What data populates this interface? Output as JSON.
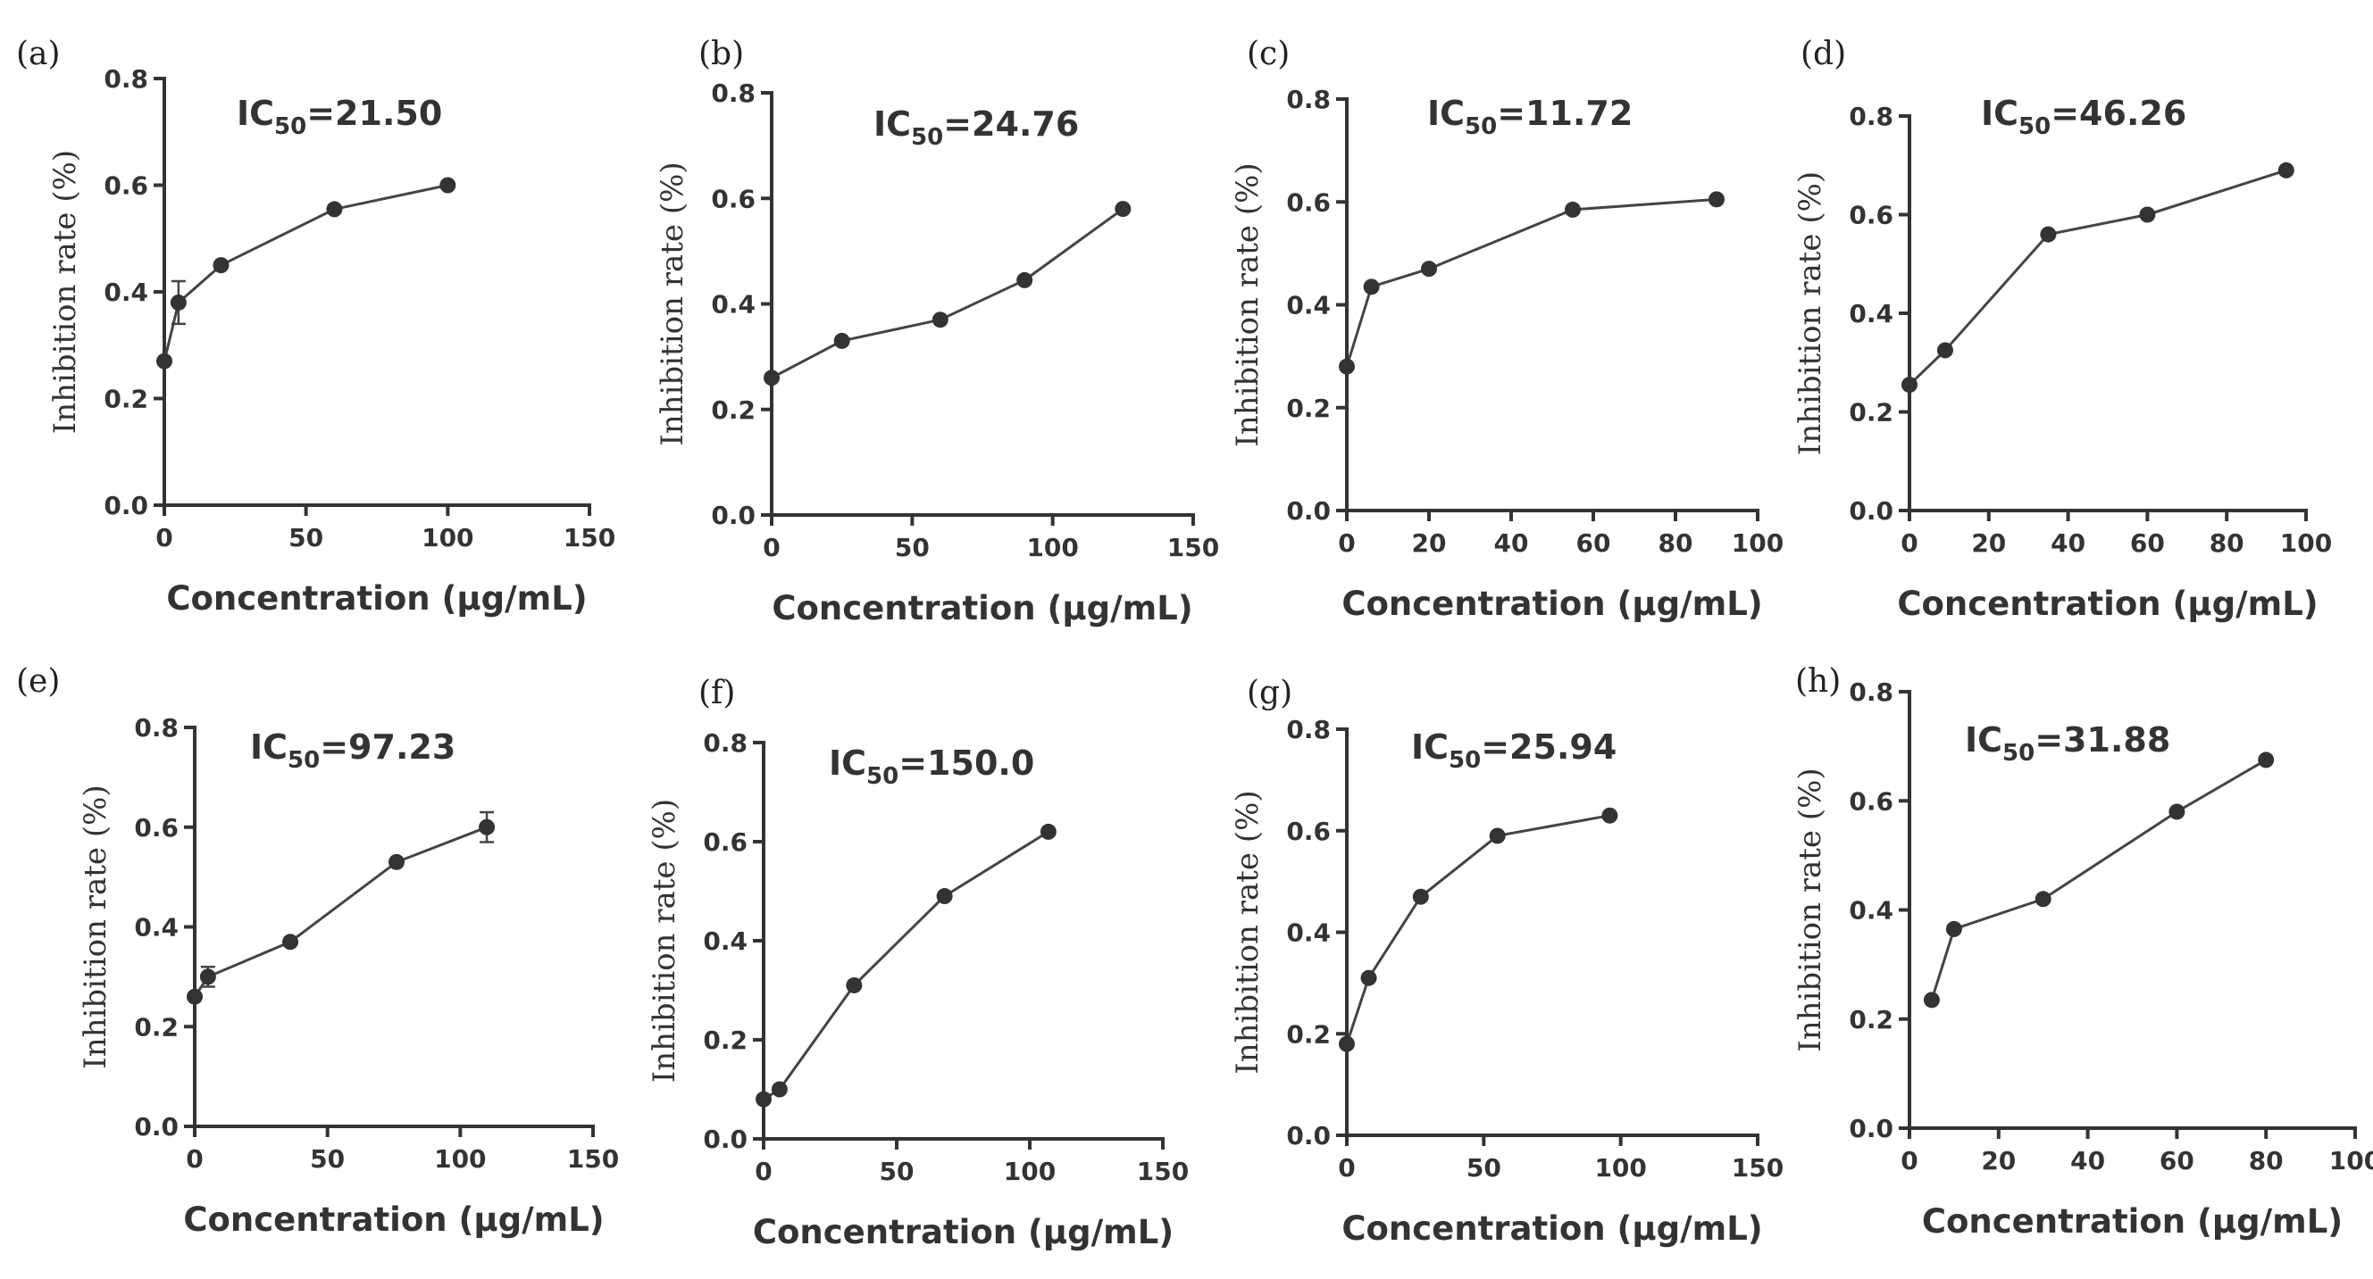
{
  "chart_data": [
    {
      "panel": "(a)",
      "type": "line",
      "annotation": {
        "prefix": "IC",
        "subscript": "50",
        "value": "=21.50"
      },
      "xlabel": "Concentration (μg/mL)",
      "ylabel": "Inhibition rate (%)",
      "xlim": [
        0,
        150
      ],
      "ylim": [
        0,
        0.8
      ],
      "xticks": [
        0,
        50,
        100,
        150
      ],
      "yticks": [
        "0.0",
        "0.2",
        "0.4",
        "0.6",
        "0.8"
      ],
      "x": [
        0,
        5,
        20,
        60,
        100
      ],
      "y": [
        0.27,
        0.38,
        0.45,
        0.555,
        0.6
      ],
      "errors": [
        0,
        0.04,
        0,
        0,
        0
      ],
      "grid": false
    },
    {
      "panel": "(b)",
      "type": "line",
      "annotation": {
        "prefix": "IC",
        "subscript": "50",
        "value": "=24.76"
      },
      "xlabel": "Concentration (μg/mL)",
      "ylabel": "Inhibition rate (%)",
      "xlim": [
        0,
        150
      ],
      "ylim": [
        0,
        0.8
      ],
      "xticks": [
        0,
        50,
        100,
        150
      ],
      "yticks": [
        "0.0",
        "0.2",
        "0.4",
        "0.6",
        "0.8"
      ],
      "x": [
        0,
        25,
        60,
        90,
        125
      ],
      "y": [
        0.26,
        0.33,
        0.37,
        0.445,
        0.58
      ],
      "errors": [
        0,
        0,
        0,
        0,
        0
      ],
      "grid": false
    },
    {
      "panel": "(c)",
      "type": "line",
      "annotation": {
        "prefix": "IC",
        "subscript": "50",
        "value": "=11.72"
      },
      "xlabel": "Concentration (μg/mL)",
      "ylabel": "Inhibition rate (%)",
      "xlim": [
        0,
        100
      ],
      "ylim": [
        0,
        0.8
      ],
      "xticks": [
        0,
        20,
        40,
        60,
        80,
        100
      ],
      "yticks": [
        "0.0",
        "0.2",
        "0.4",
        "0.6",
        "0.8"
      ],
      "x": [
        0,
        6,
        20,
        55,
        90
      ],
      "y": [
        0.28,
        0.435,
        0.47,
        0.585,
        0.605
      ],
      "errors": [
        0,
        0,
        0,
        0,
        0
      ],
      "grid": false
    },
    {
      "panel": "(d)",
      "type": "line",
      "annotation": {
        "prefix": "IC",
        "subscript": "50",
        "value": "=46.26"
      },
      "xlabel": "Concentration (μg/mL)",
      "ylabel": "Inhibition rate (%)",
      "xlim": [
        0,
        100
      ],
      "ylim": [
        0,
        0.8
      ],
      "xticks": [
        0,
        20,
        40,
        60,
        80,
        100
      ],
      "yticks": [
        "0.0",
        "0.2",
        "0.4",
        "0.6",
        "0.8"
      ],
      "x": [
        0,
        9,
        35,
        60,
        95
      ],
      "y": [
        0.255,
        0.325,
        0.56,
        0.6,
        0.69
      ],
      "errors": [
        0,
        0,
        0,
        0,
        0
      ],
      "grid": false
    },
    {
      "panel": "(e)",
      "type": "line",
      "annotation": {
        "prefix": "IC",
        "subscript": "50",
        "value": "=97.23"
      },
      "xlabel": "Concentration (μg/mL)",
      "ylabel": "Inhibition rate (%)",
      "xlim": [
        0,
        150
      ],
      "ylim": [
        0,
        0.8
      ],
      "xticks": [
        0,
        50,
        100,
        150
      ],
      "yticks": [
        "0.0",
        "0.2",
        "0.4",
        "0.6",
        "0.8"
      ],
      "x": [
        0,
        5,
        36,
        76,
        110
      ],
      "y": [
        0.26,
        0.3,
        0.37,
        0.53,
        0.6
      ],
      "errors": [
        0,
        0.02,
        0,
        0,
        0.03
      ],
      "grid": false
    },
    {
      "panel": "(f)",
      "type": "line",
      "annotation": {
        "prefix": "IC",
        "subscript": "50",
        "value": "=150.0"
      },
      "xlabel": "Concentration (μg/mL)",
      "ylabel": "Inhibition rate (%)",
      "xlim": [
        0,
        150
      ],
      "ylim": [
        0,
        0.8
      ],
      "xticks": [
        0,
        50,
        100,
        150
      ],
      "yticks": [
        "0.0",
        "0.2",
        "0.4",
        "0.6",
        "0.8"
      ],
      "x": [
        0,
        6,
        34,
        68,
        107
      ],
      "y": [
        0.08,
        0.1,
        0.31,
        0.49,
        0.62
      ],
      "errors": [
        0,
        0,
        0,
        0,
        0
      ],
      "grid": false
    },
    {
      "panel": "(g)",
      "type": "line",
      "annotation": {
        "prefix": "IC",
        "subscript": "50",
        "value": "=25.94"
      },
      "xlabel": "Concentration (μg/mL)",
      "ylabel": "Inhibition rate (%)",
      "xlim": [
        0,
        150
      ],
      "ylim": [
        0,
        0.8
      ],
      "xticks": [
        0,
        50,
        100,
        150
      ],
      "yticks": [
        "0.0",
        "0.2",
        "0.4",
        "0.6",
        "0.8"
      ],
      "x": [
        0,
        8,
        27,
        55,
        96
      ],
      "y": [
        0.18,
        0.31,
        0.47,
        0.59,
        0.63
      ],
      "errors": [
        0,
        0,
        0,
        0,
        0
      ],
      "grid": false
    },
    {
      "panel": "(h)",
      "type": "line",
      "annotation": {
        "prefix": "IC",
        "subscript": "50",
        "value": "=31.88"
      },
      "xlabel": "Concentration (μg/mL)",
      "ylabel": "Inhibition rate (%)",
      "xlim": [
        0,
        100
      ],
      "ylim": [
        0,
        0.8
      ],
      "xticks": [
        0,
        20,
        40,
        60,
        80,
        100
      ],
      "yticks": [
        "0.0",
        "0.2",
        "0.4",
        "0.6",
        "0.8"
      ],
      "x": [
        5,
        10,
        30,
        60,
        80
      ],
      "y": [
        0.235,
        0.365,
        0.42,
        0.58,
        0.675
      ],
      "errors": [
        0,
        0,
        0,
        0,
        0
      ],
      "grid": false
    }
  ]
}
